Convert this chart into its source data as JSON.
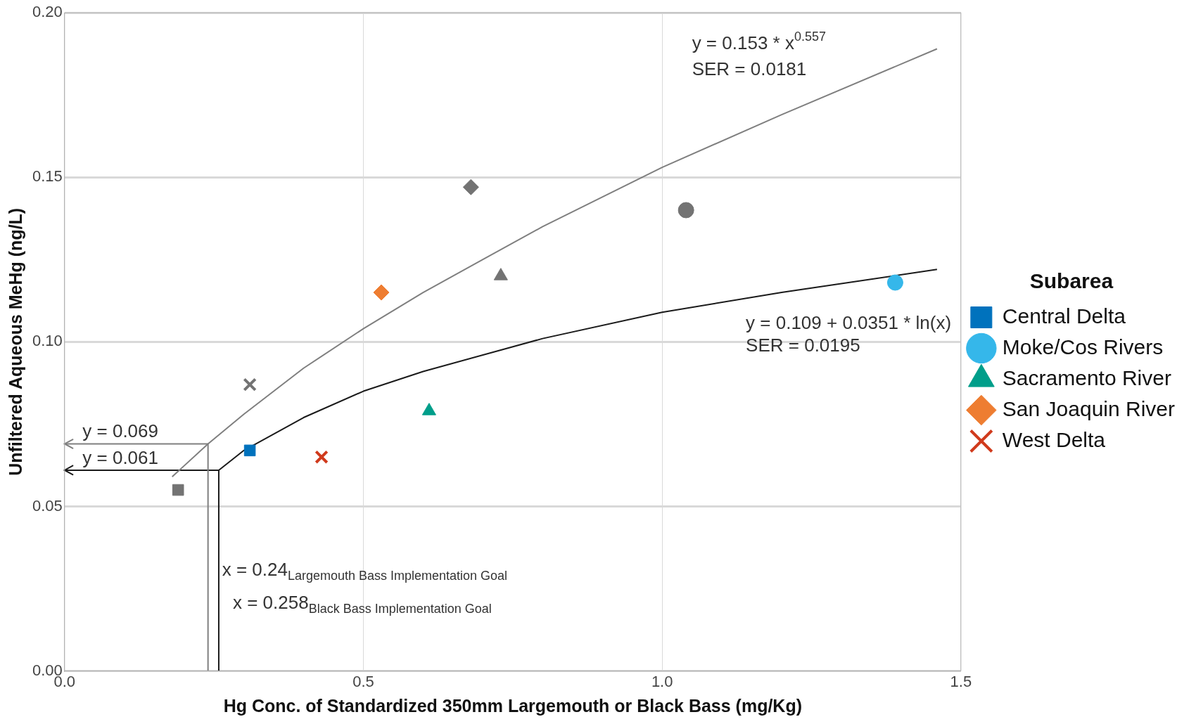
{
  "chart_data": {
    "type": "scatter",
    "xlabel": "Hg Conc. of Standardized 350mm Largemouth or Black Bass (mg/Kg)",
    "ylabel": "Unfiltered Aqueous MeHg (ng/L)",
    "legend_title": "Subarea",
    "xlim": [
      0,
      1.5
    ],
    "ylim": [
      0,
      0.2
    ],
    "xticks": [
      {
        "value": 0,
        "label": "0.0"
      },
      {
        "value": 0.5,
        "label": "0.5"
      },
      {
        "value": 1,
        "label": "1.0"
      },
      {
        "value": 1.5,
        "label": "1.5"
      }
    ],
    "yticks": [
      {
        "value": 0,
        "label": "0.00"
      },
      {
        "value": 0.05,
        "label": "0.05"
      },
      {
        "value": 0.1,
        "label": "0.10"
      },
      {
        "value": 0.15,
        "label": "0.15"
      },
      {
        "value": 0.2,
        "label": "0.20"
      }
    ],
    "grid": true,
    "legend": "right",
    "series": [
      {
        "type": "line",
        "color": "#7f7f7f",
        "x": [
          0.18,
          0.24,
          0.3,
          0.4,
          0.5,
          0.6,
          0.7,
          0.8,
          1.0,
          1.2,
          1.46
        ],
        "values": [
          0.059,
          0.069,
          0.078,
          0.092,
          0.104,
          0.115,
          0.125,
          0.135,
          0.153,
          0.169,
          0.189
        ],
        "marker": "none"
      },
      {
        "type": "line",
        "color": "#1a1a1a",
        "x": [
          0.258,
          0.3,
          0.4,
          0.5,
          0.6,
          0.8,
          1.0,
          1.2,
          1.46
        ],
        "values": [
          0.061,
          0.067,
          0.077,
          0.085,
          0.091,
          0.101,
          0.109,
          0.115,
          0.122
        ],
        "marker": "none"
      },
      {
        "type": "line",
        "color": "#7f7f7f",
        "x": [
          0.24,
          0.24,
          0
        ],
        "values": [
          0,
          0.069,
          0.069
        ],
        "marker": "none"
      },
      {
        "type": "line",
        "color": "#1a1a1a",
        "x": [
          0.258,
          0.258,
          0
        ],
        "values": [
          0,
          0.061,
          0.061
        ],
        "marker": "none"
      },
      {
        "color": "#737373",
        "x": [
          0.19
        ],
        "values": [
          0.055
        ],
        "marker": "square"
      },
      {
        "color": "#737373",
        "x": [
          0.31
        ],
        "values": [
          0.087
        ],
        "marker": "cross"
      },
      {
        "color": "#737373",
        "x": [
          0.68
        ],
        "values": [
          0.147
        ],
        "marker": "diamond"
      },
      {
        "color": "#737373",
        "x": [
          0.73
        ],
        "values": [
          0.12
        ],
        "marker": "triangle"
      },
      {
        "color": "#737373",
        "x": [
          1.04
        ],
        "values": [
          0.14
        ],
        "marker": "circle"
      },
      {
        "name": "Central Delta",
        "color": "#0072bd",
        "x": [
          0.31
        ],
        "values": [
          0.067
        ],
        "marker": "square"
      },
      {
        "name": "Moke/Cos Rivers",
        "color": "#35b7ea",
        "x": [
          1.39
        ],
        "values": [
          0.118
        ],
        "marker": "circle"
      },
      {
        "name": "Sacramento River",
        "color": "#009e8a",
        "x": [
          0.61
        ],
        "values": [
          0.079
        ],
        "marker": "triangle"
      },
      {
        "name": "San Joaquin River",
        "color": "#ee7d31",
        "x": [
          0.53
        ],
        "values": [
          0.115
        ],
        "marker": "diamond"
      },
      {
        "name": "West Delta",
        "color": "#d03a1c",
        "x": [
          0.43
        ],
        "values": [
          0.065
        ],
        "marker": "cross"
      }
    ],
    "annotations": [
      "y = 0.153 * x$^{0.557}$",
      "SER = 0.0181",
      "y = 0.109 + 0.0351 * ln(x)",
      "SER = 0.0195",
      "y = 0.069",
      "y = 0.061",
      {
        "text": "x = 0.24$_{Largemouth Bass Implementation Goal}$",
        "x": 0.24,
        "y": 0.029
      },
      {
        "text": "x = 0.258$_{Black Bass Implementation Goal}$",
        "x": 0.258,
        "y": 0.019
      }
    ]
  }
}
